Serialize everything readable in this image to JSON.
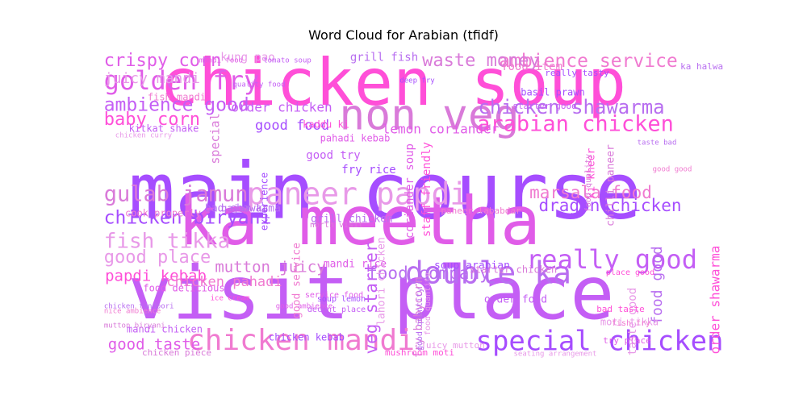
{
  "chart_data": {
    "type": "wordcloud",
    "title": "Word Cloud for Arabian (tfidf)",
    "palette": [
      "#a64dff",
      "#c45ef5",
      "#e05ce8",
      "#ff4fd8",
      "#d97ad9",
      "#e899e8",
      "#b86ef0",
      "#f07ad0"
    ],
    "words": [
      {
        "text": "main course",
        "weight": 1.0
      },
      {
        "text": "visit place",
        "weight": 0.95
      },
      {
        "text": "ka meetha",
        "weight": 0.86
      },
      {
        "text": "chicken soup",
        "weight": 0.83
      },
      {
        "text": "non veg",
        "weight": 0.55
      },
      {
        "text": "paneer papdi",
        "weight": 0.4
      },
      {
        "text": "double ka",
        "weight": 0.4
      },
      {
        "text": "chicken mandi",
        "weight": 0.38
      },
      {
        "text": "special chicken",
        "weight": 0.35
      },
      {
        "text": "really good",
        "weight": 0.33
      },
      {
        "text": "golden fry",
        "weight": 0.33
      },
      {
        "text": "arabian chicken",
        "weight": 0.28
      },
      {
        "text": "gulab jamun",
        "weight": 0.28
      },
      {
        "text": "fish tikka",
        "weight": 0.27
      },
      {
        "text": "chicken shawarma",
        "weight": 0.25
      },
      {
        "text": "ambience service",
        "weight": 0.24
      },
      {
        "text": "chicken biryani",
        "weight": 0.24
      },
      {
        "text": "ambience good",
        "weight": 0.24
      },
      {
        "text": "crispy corn",
        "weight": 0.23
      },
      {
        "text": "baby corn",
        "weight": 0.23
      },
      {
        "text": "waste money",
        "weight": 0.23
      },
      {
        "text": "good place",
        "weight": 0.23
      },
      {
        "text": "food company",
        "weight": 0.22
      },
      {
        "text": "marsala food",
        "weight": 0.22
      },
      {
        "text": "dragon chicken",
        "weight": 0.22
      },
      {
        "text": "veg starter",
        "weight": 0.22
      },
      {
        "text": "good taste",
        "weight": 0.2
      },
      {
        "text": "papdi kebab",
        "weight": 0.2
      },
      {
        "text": "mutton juicy",
        "weight": 0.2
      },
      {
        "text": "juicy mandi",
        "weight": 0.19
      },
      {
        "text": "food good",
        "weight": 0.19
      },
      {
        "text": "chicken pahadi",
        "weight": 0.18
      },
      {
        "text": "good food",
        "weight": 0.18
      },
      {
        "text": "order chicken",
        "weight": 0.17
      },
      {
        "text": "lemon coriander",
        "weight": 0.17
      },
      {
        "text": "order shawarma",
        "weight": 0.17
      },
      {
        "text": "special",
        "weight": 0.16
      },
      {
        "text": "kung pao",
        "weight": 0.15
      },
      {
        "text": "grill fish",
        "weight": 0.15
      },
      {
        "text": "food item",
        "weight": 0.15
      },
      {
        "text": "fry rice",
        "weight": 0.15
      },
      {
        "text": "good try",
        "weight": 0.15
      },
      {
        "text": "coriander soup",
        "weight": 0.15
      },
      {
        "text": "staff friendly",
        "weight": 0.15
      },
      {
        "text": "fry babycorn",
        "weight": 0.15
      },
      {
        "text": "taste good",
        "weight": 0.15
      },
      {
        "text": "grill chicken",
        "weight": 0.14
      },
      {
        "text": "good service",
        "weight": 0.14
      },
      {
        "text": "soup arabian",
        "weight": 0.14
      },
      {
        "text": "order food",
        "weight": 0.14
      },
      {
        "text": "mandi rice",
        "weight": 0.14
      },
      {
        "text": "ki kheer",
        "weight": 0.14
      },
      {
        "text": "chilli paneer",
        "weight": 0.14
      },
      {
        "text": "lahori chicken",
        "weight": 0.14
      },
      {
        "text": "bad shawarma",
        "weight": 0.14
      },
      {
        "text": "fish mandi",
        "weight": 0.13
      },
      {
        "text": "basil prawn",
        "weight": 0.13
      },
      {
        "text": "kitkat shake",
        "weight": 0.13
      },
      {
        "text": "pahadi kebab",
        "weight": 0.13
      },
      {
        "text": "kaddu ki",
        "weight": 0.13
      },
      {
        "text": "starter chicken",
        "weight": 0.12
      },
      {
        "text": "moti tikka",
        "weight": 0.12
      },
      {
        "text": "gajar ka",
        "weight": 0.12
      },
      {
        "text": "cook properly",
        "weight": 0.12
      },
      {
        "text": "chicken kebab",
        "weight": 0.12
      },
      {
        "text": "mandi chicken",
        "weight": 0.12
      },
      {
        "text": "food delicious",
        "weight": 0.12
      },
      {
        "text": "mushroom moti",
        "weight": 0.11
      },
      {
        "text": "chicken piece",
        "weight": 0.11
      },
      {
        "text": "juicy mutton",
        "weight": 0.11
      },
      {
        "text": "ka halwa",
        "weight": 0.11
      },
      {
        "text": "paneer lababdar",
        "weight": 0.11
      },
      {
        "text": "really tasty",
        "weight": 0.11
      },
      {
        "text": "starter good",
        "weight": 0.11
      },
      {
        "text": "try place",
        "weight": 0.11
      },
      {
        "text": "bad taste",
        "weight": 0.11
      },
      {
        "text": "north visit",
        "weight": 0.1
      },
      {
        "text": "food quantity",
        "weight": 0.1
      },
      {
        "text": "good quantity",
        "weight": 0.1
      },
      {
        "text": "fish fry",
        "weight": 0.1
      },
      {
        "text": "soup lemon",
        "weight": 0.1
      },
      {
        "text": "decent place",
        "weight": 0.1
      },
      {
        "text": "service food",
        "weight": 0.1
      },
      {
        "text": "place good",
        "weight": 0.1
      },
      {
        "text": "food quality",
        "weight": 0.1
      },
      {
        "text": "seating arrangement",
        "weight": 0.09
      },
      {
        "text": "chicken tandoori",
        "weight": 0.09
      },
      {
        "text": "nice ambience",
        "weight": 0.09
      },
      {
        "text": "deep fry",
        "weight": 0.09
      },
      {
        "text": "quality food",
        "weight": 0.09
      },
      {
        "text": "good ambience",
        "weight": 0.09
      },
      {
        "text": "ice cream",
        "weight": 0.09
      },
      {
        "text": "mutton biryani",
        "weight": 0.09
      },
      {
        "text": "chicken curry",
        "weight": 0.09
      },
      {
        "text": "taste bad",
        "weight": 0.09
      },
      {
        "text": "good good",
        "weight": 0.09
      },
      {
        "text": "experience",
        "weight": 0.12
      },
      {
        "text": "tomato soup",
        "weight": 0.09
      },
      {
        "text": "mandi food",
        "weight": 0.09
      }
    ]
  }
}
